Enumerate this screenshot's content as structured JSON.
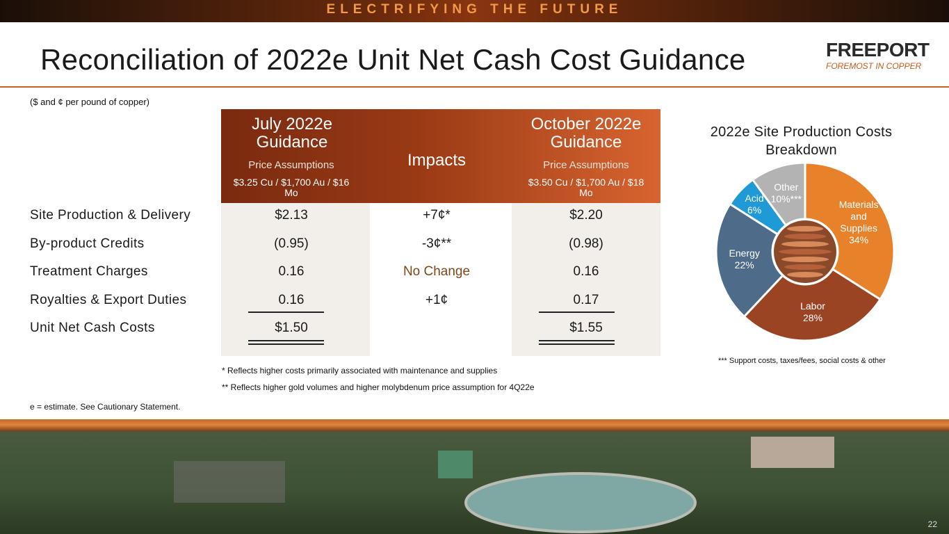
{
  "banner": "ELECTRIFYING THE FUTURE",
  "header": {
    "title": "Reconciliation of 2022e Unit Net Cash Cost Guidance",
    "logo": "FREEPORT",
    "tagline": "FOREMOST IN COPPER"
  },
  "units_note": "($ and ¢ per pound of copper)",
  "table": {
    "columns": [
      {
        "title": "July 2022e Guidance",
        "subtitle": "Price Assumptions",
        "detail": "$3.25 Cu / $1,700 Au / $16 Mo"
      },
      {
        "title": "Impacts"
      },
      {
        "title": "October 2022e Guidance",
        "subtitle": "Price Assumptions",
        "detail": "$3.50 Cu / $1,700 Au / $18 Mo"
      }
    ],
    "rows": [
      [
        "Site Production & Delivery",
        "$2.13",
        "+7¢*",
        "$2.20"
      ],
      [
        "By-product Credits",
        "(0.95)",
        "-3¢**",
        "(0.98)"
      ],
      [
        "Treatment Charges",
        "0.16",
        "No Change",
        "0.16"
      ],
      [
        "Royalties & Export Duties",
        "0.16",
        "+1¢",
        "0.17"
      ],
      [
        "Unit Net Cash Costs",
        "$1.50",
        null,
        "$1.55"
      ]
    ]
  },
  "footnotes": [
    "* Reflects higher costs primarily associated with maintenance and supplies",
    "** Reflects higher gold volumes and higher molybdenum price assumption for 4Q22e"
  ],
  "estimate_note": "e = estimate. See Cautionary Statement.",
  "pie": {
    "type": "pie",
    "title": "2022e Site Production Costs Breakdown",
    "categories": [
      "Materials and Supplies",
      "Labor",
      "Energy",
      "Acid",
      "Other"
    ],
    "values": [
      34,
      28,
      22,
      6,
      10
    ],
    "value_labels": [
      "34%",
      "28%",
      "22%",
      "6%",
      "10%***"
    ],
    "colors": [
      "#e8822a",
      "#9a4423",
      "#4e6b8a",
      "#1f9ad6",
      "#b3b3b3"
    ]
  },
  "pie_note": "*** Support costs, taxes/fees, social costs & other",
  "page_number": "22"
}
